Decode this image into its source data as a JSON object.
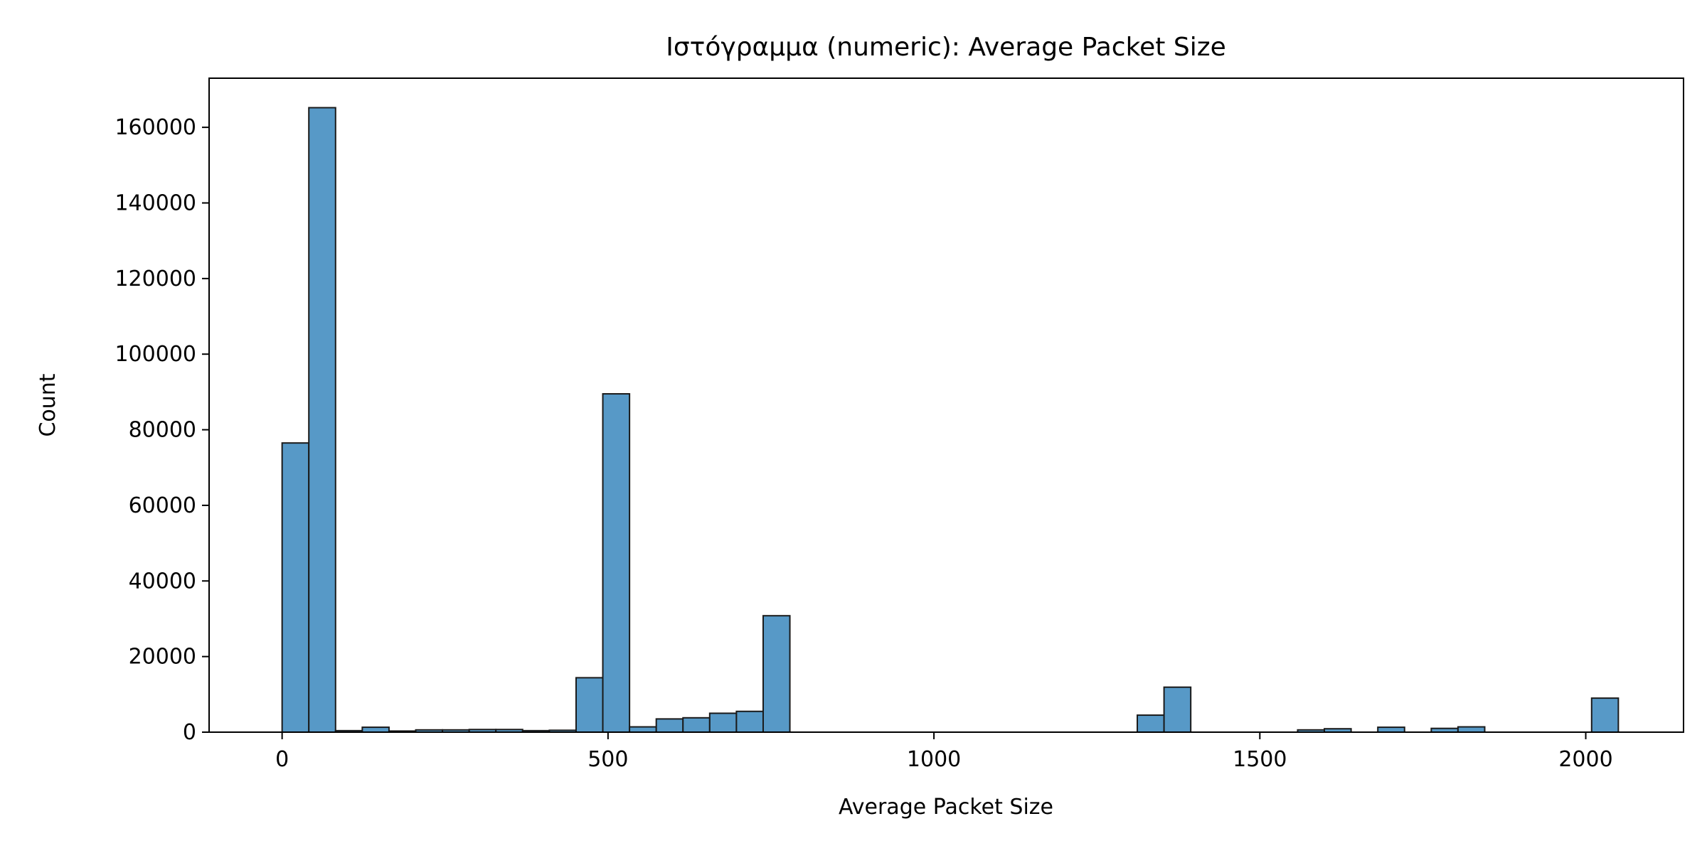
{
  "chart_data": {
    "type": "bar",
    "title": "Ιστόγραμμα (numeric): Average Packet Size",
    "xlabel": "Average Packet Size",
    "ylabel": "Count",
    "xlim": [
      -112,
      2150
    ],
    "ylim": [
      0,
      173000
    ],
    "xticks": [
      0,
      500,
      1000,
      1500,
      2000
    ],
    "yticks": [
      0,
      20000,
      40000,
      60000,
      80000,
      100000,
      120000,
      140000,
      160000
    ],
    "bin_width": 41,
    "bar_color": "#5799c7",
    "edge_color": "#1a1a1a",
    "grid": false,
    "legend": "none",
    "bins": [
      {
        "x0": 0,
        "count": 76500
      },
      {
        "x0": 41,
        "count": 165200
      },
      {
        "x0": 82,
        "count": 400
      },
      {
        "x0": 123,
        "count": 1300
      },
      {
        "x0": 164,
        "count": 300
      },
      {
        "x0": 205,
        "count": 600
      },
      {
        "x0": 246,
        "count": 600
      },
      {
        "x0": 287,
        "count": 700
      },
      {
        "x0": 328,
        "count": 700
      },
      {
        "x0": 369,
        "count": 400
      },
      {
        "x0": 410,
        "count": 500
      },
      {
        "x0": 451,
        "count": 14400
      },
      {
        "x0": 492,
        "count": 89500
      },
      {
        "x0": 533,
        "count": 1400
      },
      {
        "x0": 574,
        "count": 3500
      },
      {
        "x0": 615,
        "count": 3800
      },
      {
        "x0": 656,
        "count": 5000
      },
      {
        "x0": 697,
        "count": 5500
      },
      {
        "x0": 738,
        "count": 30800
      },
      {
        "x0": 1312,
        "count": 4500
      },
      {
        "x0": 1353,
        "count": 11900
      },
      {
        "x0": 1558,
        "count": 600
      },
      {
        "x0": 1599,
        "count": 900
      },
      {
        "x0": 1681,
        "count": 1300
      },
      {
        "x0": 1763,
        "count": 1000
      },
      {
        "x0": 1804,
        "count": 1400
      },
      {
        "x0": 2009,
        "count": 9000
      }
    ]
  }
}
